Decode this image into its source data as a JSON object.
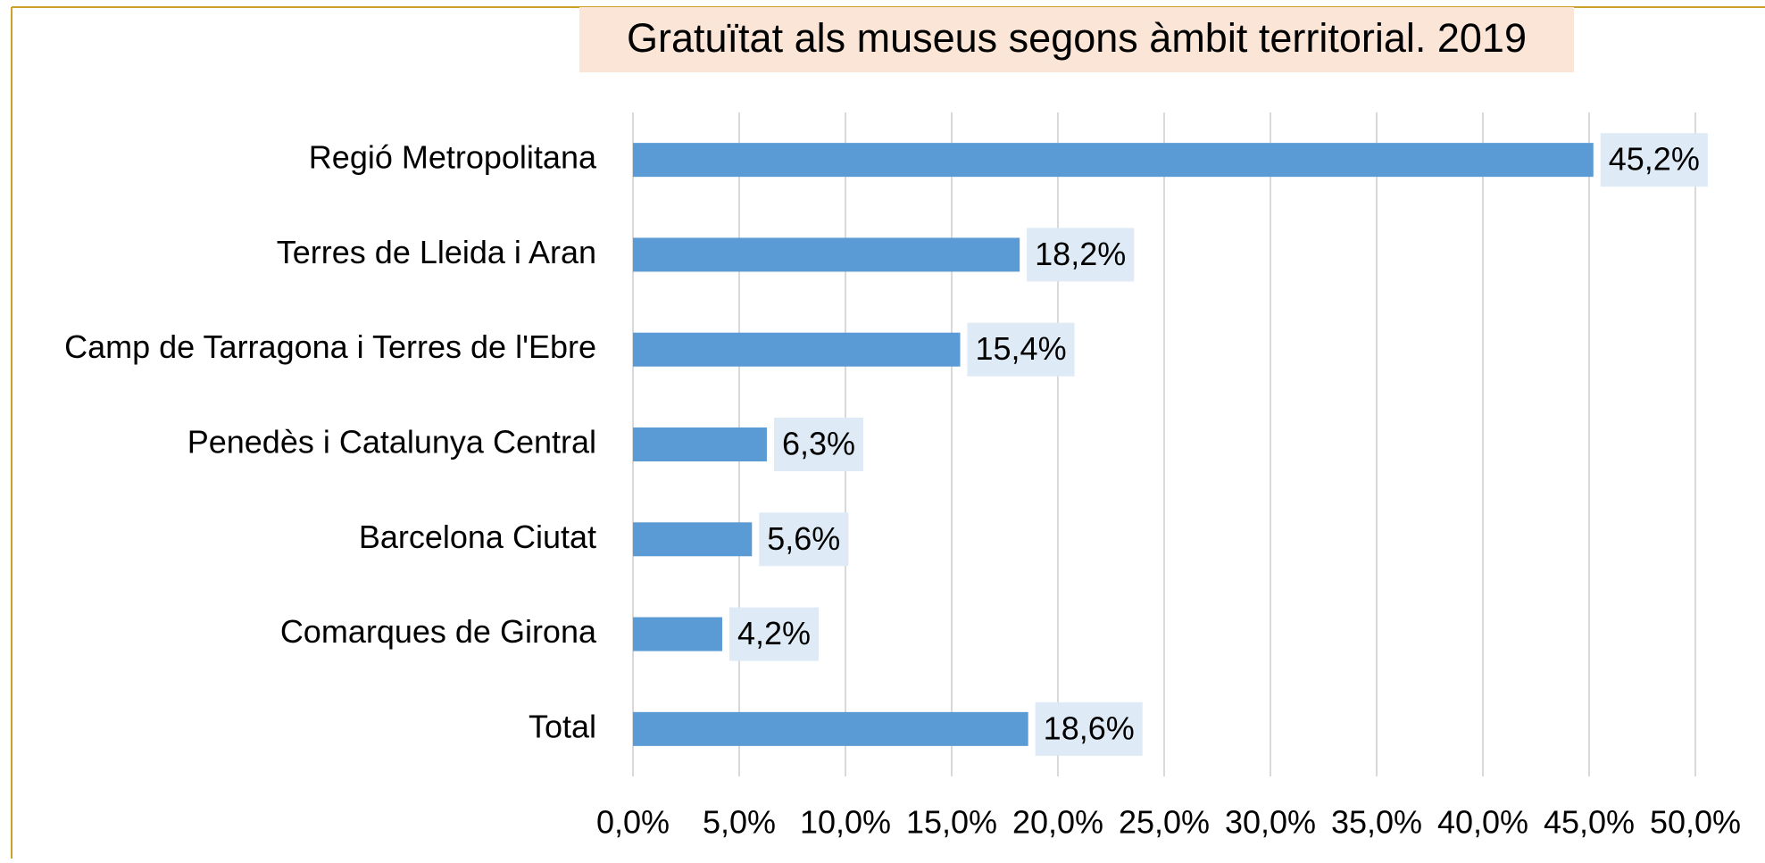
{
  "chart_data": {
    "type": "bar",
    "orientation": "horizontal",
    "title": "Gratuïtat als museus segons àmbit territorial. 2019",
    "categories": [
      "Regió Metropolitana",
      "Terres de Lleida i Aran",
      "Camp de Tarragona i Terres de l'Ebre",
      "Penedès i Catalunya Central",
      "Barcelona Ciutat",
      "Comarques de Girona",
      "Total"
    ],
    "values": [
      45.2,
      18.2,
      15.4,
      6.3,
      5.6,
      4.2,
      18.6
    ],
    "value_labels": [
      "45,2%",
      "18,2%",
      "15,4%",
      "6,3%",
      "5,6%",
      "4,2%",
      "18,6%"
    ],
    "color": "#5b9bd5",
    "xlim": [
      0,
      50
    ],
    "xticks": [
      {
        "value": 0,
        "label": "0,0%"
      },
      {
        "value": 5,
        "label": "5,0%"
      },
      {
        "value": 10,
        "label": "10,0%"
      },
      {
        "value": 15,
        "label": "15,0%"
      },
      {
        "value": 20,
        "label": "20,0%"
      },
      {
        "value": 25,
        "label": "25,0%"
      },
      {
        "value": 30,
        "label": "30,0%"
      },
      {
        "value": 35,
        "label": "35,0%"
      },
      {
        "value": 40,
        "label": "40,0%"
      },
      {
        "value": 45,
        "label": "45,0%"
      },
      {
        "value": 50,
        "label": "50,0%"
      }
    ],
    "grid": true
  }
}
